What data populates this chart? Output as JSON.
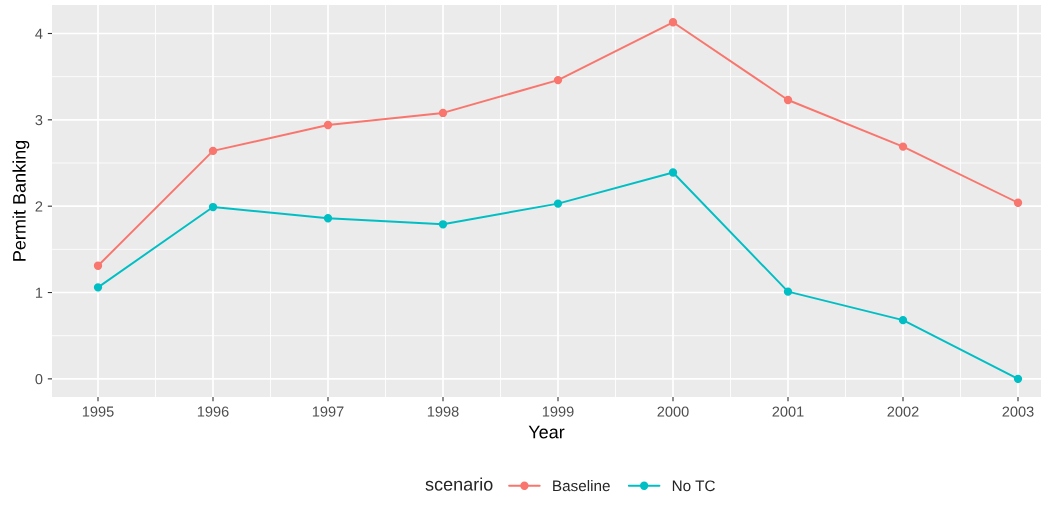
{
  "chart_data": {
    "type": "line",
    "xlabel": "Year",
    "ylabel": "Permit Banking",
    "legend_title": "scenario",
    "x": [
      1995,
      1996,
      1997,
      1998,
      1999,
      2000,
      2001,
      2002,
      2003
    ],
    "series": [
      {
        "name": "Baseline",
        "color": "#f8766d",
        "values": [
          1.31,
          2.64,
          2.94,
          3.08,
          3.46,
          4.13,
          3.23,
          2.69,
          2.04
        ]
      },
      {
        "name": "No TC",
        "color": "#00bfc4",
        "values": [
          1.06,
          1.99,
          1.86,
          1.79,
          2.03,
          2.39,
          1.01,
          0.68,
          0
        ]
      }
    ],
    "xlim": [
      1994.6,
      2003.2
    ],
    "ylim": [
      -0.21,
      4.33
    ],
    "xticks": [
      1995,
      1996,
      1997,
      1998,
      1999,
      2000,
      2001,
      2002,
      2003
    ],
    "yticks": [
      0,
      1,
      2,
      3,
      4
    ],
    "grid": true,
    "legend": "bottom",
    "marker": "circle",
    "line_style": "solid"
  }
}
